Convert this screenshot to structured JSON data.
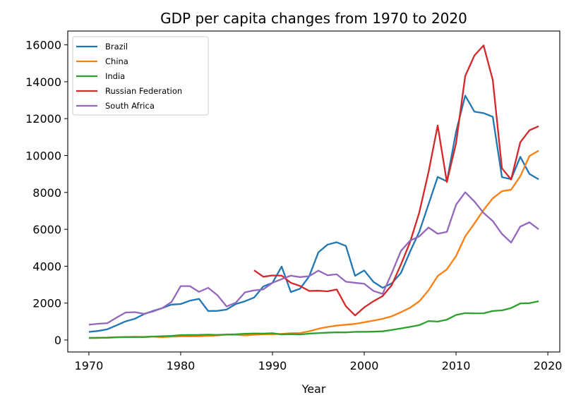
{
  "chart_data": {
    "type": "line",
    "title": "GDP per capita changes from 1970 to 2020",
    "xlabel": "Year",
    "ylabel": "",
    "xlim": [
      1967.7,
      2021.3
    ],
    "ylim": [
      -650,
      16750
    ],
    "xticks": [
      1970,
      1980,
      1990,
      2000,
      2010,
      2020
    ],
    "yticks": [
      0,
      2000,
      4000,
      6000,
      8000,
      10000,
      12000,
      14000,
      16000
    ],
    "grid": false,
    "legend": "top-left",
    "series": [
      {
        "name": "Brazil",
        "color": "#1f77b4",
        "x": [
          1970,
          1971,
          1972,
          1973,
          1974,
          1975,
          1976,
          1977,
          1978,
          1979,
          1980,
          1981,
          1982,
          1983,
          1984,
          1985,
          1986,
          1987,
          1988,
          1989,
          1990,
          1991,
          1992,
          1993,
          1994,
          1995,
          1996,
          1997,
          1998,
          1999,
          2000,
          2001,
          2002,
          2003,
          2004,
          2005,
          2006,
          2007,
          2008,
          2009,
          2010,
          2011,
          2012,
          2013,
          2014,
          2015,
          2016,
          2017,
          2018,
          2019
        ],
        "values": [
          440,
          490,
          580,
          790,
          1010,
          1150,
          1400,
          1580,
          1730,
          1920,
          1950,
          2130,
          2230,
          1570,
          1580,
          1650,
          1950,
          2100,
          2300,
          2900,
          3100,
          3980,
          2600,
          2780,
          3450,
          4750,
          5170,
          5300,
          5100,
          3480,
          3770,
          3150,
          2830,
          3070,
          3640,
          4800,
          5870,
          7350,
          8840,
          8600,
          11290,
          13250,
          12380,
          12300,
          12100,
          8830,
          8720,
          9930,
          9000,
          8710
        ]
      },
      {
        "name": "China",
        "color": "#ff7f0e",
        "x": [
          1970,
          1971,
          1972,
          1973,
          1974,
          1975,
          1976,
          1977,
          1978,
          1979,
          1980,
          1981,
          1982,
          1983,
          1984,
          1985,
          1986,
          1987,
          1988,
          1989,
          1990,
          1991,
          1992,
          1993,
          1994,
          1995,
          1996,
          1997,
          1998,
          1999,
          2000,
          2001,
          2002,
          2003,
          2004,
          2005,
          2006,
          2007,
          2008,
          2009,
          2010,
          2011,
          2012,
          2013,
          2014,
          2015,
          2016,
          2017,
          2018,
          2019
        ],
        "values": [
          112,
          118,
          131,
          156,
          160,
          178,
          165,
          185,
          156,
          183,
          195,
          197,
          203,
          225,
          250,
          294,
          281,
          251,
          284,
          311,
          318,
          333,
          366,
          377,
          473,
          610,
          709,
          782,
          829,
          873,
          959,
          1053,
          1149,
          1289,
          1509,
          1753,
          2099,
          2694,
          3468,
          3832,
          4550,
          5618,
          6317,
          7051,
          7679,
          8067,
          8148,
          8879,
          9977,
          10262
        ]
      },
      {
        "name": "India",
        "color": "#2ca02c",
        "x": [
          1970,
          1971,
          1972,
          1973,
          1974,
          1975,
          1976,
          1977,
          1978,
          1979,
          1980,
          1981,
          1982,
          1983,
          1984,
          1985,
          1986,
          1987,
          1988,
          1989,
          1990,
          1991,
          1992,
          1993,
          1994,
          1995,
          1996,
          1997,
          1998,
          1999,
          2000,
          2001,
          2002,
          2003,
          2004,
          2005,
          2006,
          2007,
          2008,
          2009,
          2010,
          2011,
          2012,
          2013,
          2014,
          2015,
          2016,
          2017,
          2018,
          2019
        ],
        "values": [
          112,
          118,
          122,
          143,
          163,
          158,
          161,
          186,
          206,
          224,
          267,
          270,
          275,
          292,
          277,
          296,
          310,
          340,
          354,
          346,
          368,
          303,
          317,
          301,
          346,
          374,
          400,
          415,
          413,
          441,
          443,
          452,
          471,
          546,
          627,
          714,
          806,
          1028,
          999,
          1102,
          1358,
          1458,
          1444,
          1450,
          1574,
          1606,
          1733,
          1982,
          1997,
          2100
        ]
      },
      {
        "name": "Russian Federation",
        "color": "#d62728",
        "x": [
          1988,
          1989,
          1990,
          1991,
          1992,
          1993,
          1994,
          1995,
          1996,
          1997,
          1998,
          1999,
          2000,
          2001,
          2002,
          2003,
          2004,
          2005,
          2006,
          2007,
          2008,
          2009,
          2010,
          2011,
          2012,
          2013,
          2014,
          2015,
          2016,
          2017,
          2018,
          2019
        ],
        "values": [
          3780,
          3430,
          3500,
          3490,
          3100,
          2930,
          2660,
          2670,
          2640,
          2740,
          1830,
          1330,
          1770,
          2100,
          2380,
          2980,
          4100,
          5320,
          6920,
          9100,
          11630,
          8560,
          10670,
          14310,
          15420,
          15970,
          14100,
          9310,
          8700,
          10720,
          11370,
          11590
        ]
      },
      {
        "name": "South Africa",
        "color": "#9467bd",
        "x": [
          1970,
          1971,
          1972,
          1973,
          1974,
          1975,
          1976,
          1977,
          1978,
          1979,
          1980,
          1981,
          1982,
          1983,
          1984,
          1985,
          1986,
          1987,
          1988,
          1989,
          1990,
          1991,
          1992,
          1993,
          1994,
          1995,
          1996,
          1997,
          1998,
          1999,
          2000,
          2001,
          2002,
          2003,
          2004,
          2005,
          2006,
          2007,
          2008,
          2009,
          2010,
          2011,
          2012,
          2013,
          2014,
          2015,
          2016,
          2017,
          2018,
          2019
        ],
        "values": [
          830,
          880,
          910,
          1210,
          1490,
          1510,
          1420,
          1550,
          1730,
          2060,
          2920,
          2920,
          2610,
          2830,
          2430,
          1820,
          2020,
          2580,
          2690,
          2740,
          3100,
          3300,
          3490,
          3410,
          3460,
          3760,
          3510,
          3560,
          3160,
          3100,
          3050,
          2660,
          2500,
          3630,
          4830,
          5390,
          5620,
          6100,
          5760,
          5860,
          7330,
          8010,
          7510,
          6890,
          6450,
          5750,
          5280,
          6150,
          6380,
          6000
        ]
      }
    ]
  }
}
